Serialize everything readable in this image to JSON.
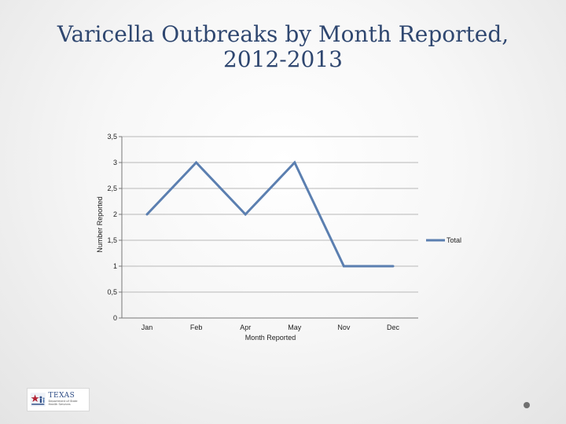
{
  "slide": {
    "title_line1": "Varicella Outbreaks by Month Reported,",
    "title_line2": "2012-2013"
  },
  "logo": {
    "main_text": "TEXAS",
    "sub_text": "Department of State Health Services",
    "icon": "texas-star-people-icon"
  },
  "colors": {
    "series": "#5b7fb0",
    "title": "#2f4770",
    "gridline": "#b8b8b8",
    "text": "#222222"
  },
  "chart_data": {
    "type": "line",
    "categories": [
      "Jan",
      "Feb",
      "Apr",
      "May",
      "Nov",
      "Dec"
    ],
    "series": [
      {
        "name": "Total",
        "values": [
          2,
          3,
          2,
          3,
          1,
          1
        ]
      }
    ],
    "ylabel": "Number Reported",
    "xlabel": "Month Reported",
    "ylim": [
      0,
      3.5
    ],
    "yticks": [
      0,
      0.5,
      1,
      1.5,
      2,
      2.5,
      3,
      3.5
    ],
    "ytick_labels": [
      "0",
      "0,5",
      "1",
      "1,5",
      "2",
      "2,5",
      "3",
      "3,5"
    ],
    "grid": true,
    "legend_position": "right"
  }
}
